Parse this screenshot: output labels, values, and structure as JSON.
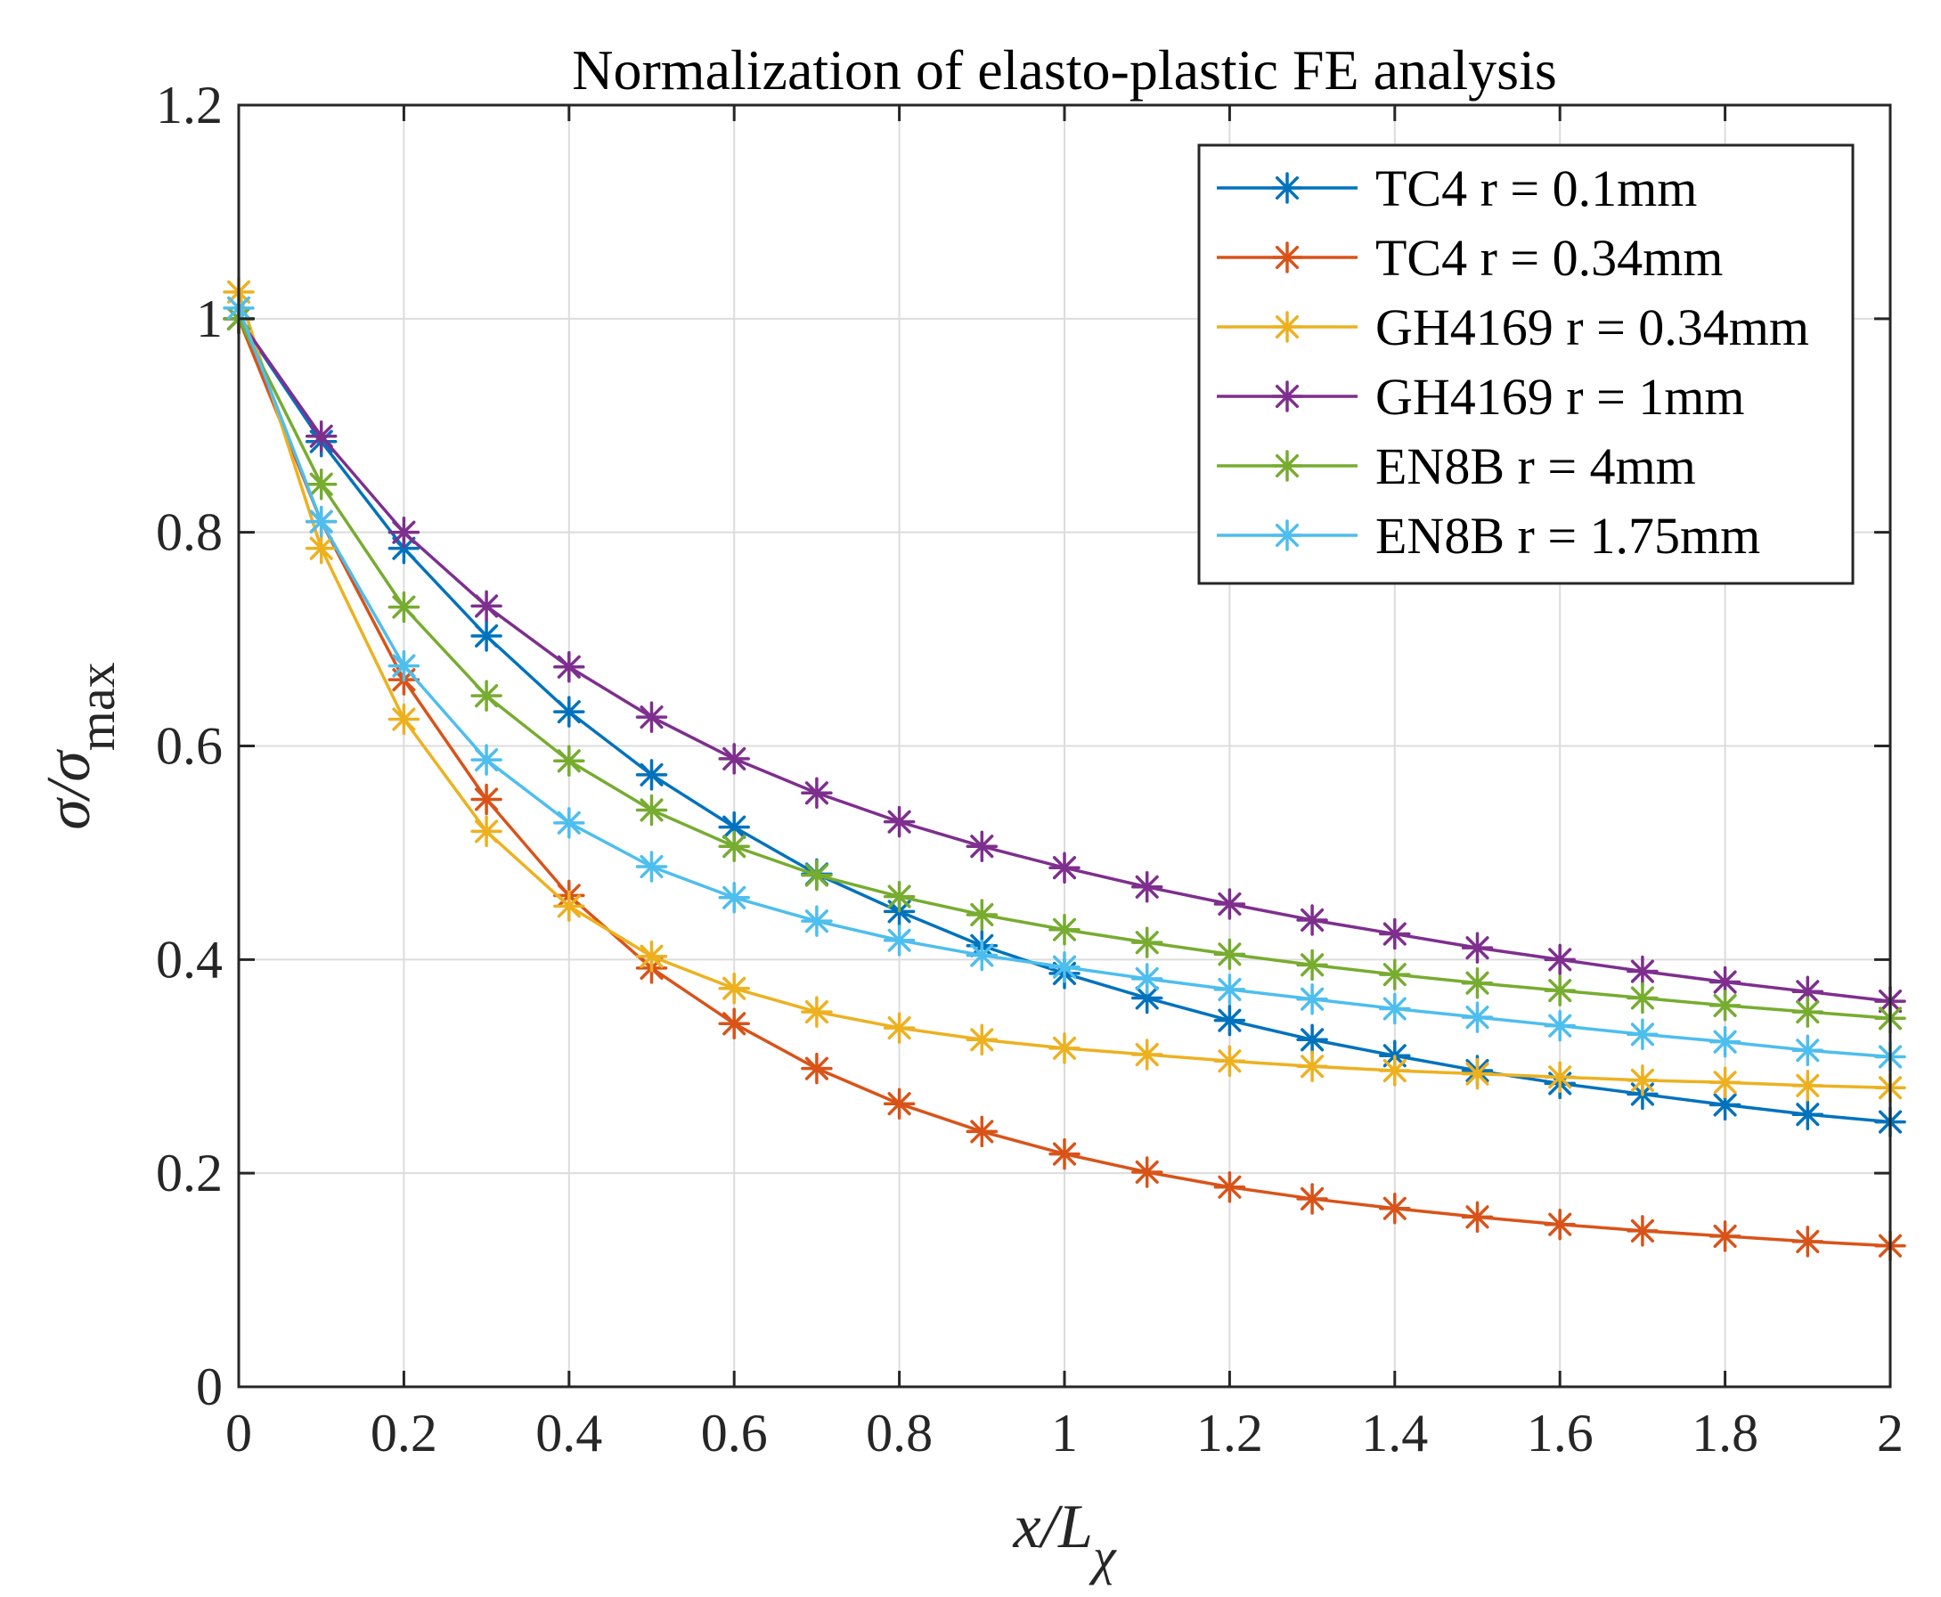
{
  "chart_data": {
    "type": "line",
    "title": "Normalization of elasto-plastic FE analysis",
    "xlabel": "x/L",
    "xlabel_sub": "χ",
    "ylabel": "σ/σ",
    "ylabel_sub": "max",
    "xlim": [
      0,
      2
    ],
    "ylim": [
      0,
      1.2
    ],
    "grid": true,
    "legend_position": "top-right",
    "x_ticks": [
      "0",
      "0.2",
      "0.4",
      "0.6",
      "0.8",
      "1",
      "1.2",
      "1.4",
      "1.6",
      "1.8",
      "2"
    ],
    "y_ticks": [
      "0",
      "0.2",
      "0.4",
      "0.6",
      "0.8",
      "1",
      "1.2"
    ],
    "x": [
      0,
      0.1,
      0.2,
      0.3,
      0.4,
      0.5,
      0.6,
      0.7,
      0.8,
      0.9,
      1.0,
      1.1,
      1.2,
      1.3,
      1.4,
      1.5,
      1.6,
      1.7,
      1.8,
      1.9,
      2.0
    ],
    "series": [
      {
        "name": "TC4 r = 0.1mm",
        "color": "#0072BD",
        "values": [
          1.0,
          0.885,
          0.785,
          0.703,
          0.632,
          0.573,
          0.524,
          0.48,
          0.445,
          0.413,
          0.387,
          0.364,
          0.343,
          0.325,
          0.31,
          0.296,
          0.284,
          0.274,
          0.264,
          0.255,
          0.248
        ]
      },
      {
        "name": "TC4 r = 0.34mm",
        "color": "#D95319",
        "values": [
          1.0,
          0.81,
          0.662,
          0.55,
          0.46,
          0.392,
          0.34,
          0.298,
          0.265,
          0.239,
          0.218,
          0.201,
          0.187,
          0.176,
          0.167,
          0.159,
          0.152,
          0.146,
          0.141,
          0.136,
          0.132
        ]
      },
      {
        "name": "GH4169 r = 0.34mm",
        "color": "#EDB120",
        "values": [
          1.025,
          0.785,
          0.625,
          0.52,
          0.45,
          0.403,
          0.373,
          0.351,
          0.336,
          0.325,
          0.317,
          0.311,
          0.305,
          0.3,
          0.296,
          0.293,
          0.29,
          0.287,
          0.285,
          0.282,
          0.28
        ]
      },
      {
        "name": "GH4169 r = 1mm",
        "color": "#7E2F8E",
        "values": [
          1.0,
          0.89,
          0.8,
          0.731,
          0.674,
          0.627,
          0.588,
          0.556,
          0.529,
          0.506,
          0.486,
          0.468,
          0.452,
          0.437,
          0.424,
          0.411,
          0.4,
          0.389,
          0.379,
          0.37,
          0.361
        ]
      },
      {
        "name": "EN8B r = 4mm",
        "color": "#77AC30",
        "values": [
          1.0,
          0.845,
          0.73,
          0.647,
          0.586,
          0.54,
          0.506,
          0.479,
          0.459,
          0.442,
          0.428,
          0.416,
          0.405,
          0.395,
          0.386,
          0.378,
          0.371,
          0.364,
          0.357,
          0.351,
          0.345
        ]
      },
      {
        "name": "EN8B r = 1.75mm",
        "color": "#4DBEEE",
        "values": [
          1.01,
          0.81,
          0.675,
          0.587,
          0.528,
          0.487,
          0.458,
          0.436,
          0.418,
          0.404,
          0.393,
          0.382,
          0.372,
          0.363,
          0.354,
          0.346,
          0.338,
          0.33,
          0.323,
          0.315,
          0.309
        ]
      }
    ]
  }
}
